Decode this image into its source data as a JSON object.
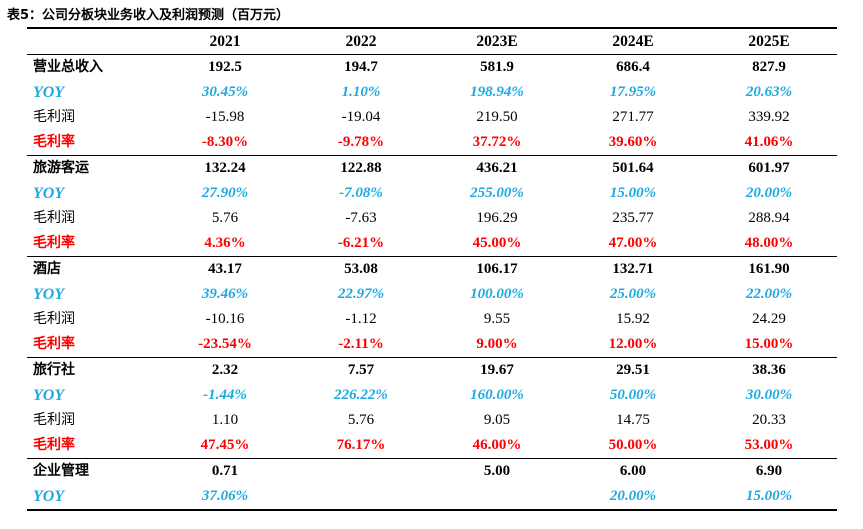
{
  "title": "表5：公司分板块业务收入及利润预测（百万元）",
  "columns": [
    "",
    "2021",
    "2022",
    "2023E",
    "2024E",
    "2025E"
  ],
  "sections": [
    {
      "rows": [
        {
          "type": "rev",
          "label": "营业总收入",
          "values": [
            "192.5",
            "194.7",
            "581.9",
            "686.4",
            "827.9"
          ]
        },
        {
          "type": "yoy",
          "label": "YOY",
          "values": [
            "30.45%",
            "1.10%",
            "198.94%",
            "17.95%",
            "20.63%"
          ]
        },
        {
          "type": "gp",
          "label": "毛利润",
          "values": [
            "-15.98",
            "-19.04",
            "219.50",
            "271.77",
            "339.92"
          ]
        },
        {
          "type": "gm",
          "label": "毛利率",
          "values": [
            "-8.30%",
            "-9.78%",
            "37.72%",
            "39.60%",
            "41.06%"
          ]
        }
      ]
    },
    {
      "rows": [
        {
          "type": "rev",
          "label": "旅游客运",
          "values": [
            "132.24",
            "122.88",
            "436.21",
            "501.64",
            "601.97"
          ]
        },
        {
          "type": "yoy",
          "label": "YOY",
          "values": [
            "27.90%",
            "-7.08%",
            "255.00%",
            "15.00%",
            "20.00%"
          ]
        },
        {
          "type": "gp",
          "label": "毛利润",
          "values": [
            "5.76",
            "-7.63",
            "196.29",
            "235.77",
            "288.94"
          ]
        },
        {
          "type": "gm",
          "label": "毛利率",
          "values": [
            "4.36%",
            "-6.21%",
            "45.00%",
            "47.00%",
            "48.00%"
          ]
        }
      ]
    },
    {
      "rows": [
        {
          "type": "rev",
          "label": "酒店",
          "values": [
            "43.17",
            "53.08",
            "106.17",
            "132.71",
            "161.90"
          ]
        },
        {
          "type": "yoy",
          "label": "YOY",
          "values": [
            "39.46%",
            "22.97%",
            "100.00%",
            "25.00%",
            "22.00%"
          ]
        },
        {
          "type": "gp",
          "label": "毛利润",
          "values": [
            "-10.16",
            "-1.12",
            "9.55",
            "15.92",
            "24.29"
          ]
        },
        {
          "type": "gm",
          "label": "毛利率",
          "values": [
            "-23.54%",
            "-2.11%",
            "9.00%",
            "12.00%",
            "15.00%"
          ]
        }
      ]
    },
    {
      "rows": [
        {
          "type": "rev",
          "label": "旅行社",
          "values": [
            "2.32",
            "7.57",
            "19.67",
            "29.51",
            "38.36"
          ]
        },
        {
          "type": "yoy",
          "label": "YOY",
          "values": [
            "-1.44%",
            "226.22%",
            "160.00%",
            "50.00%",
            "30.00%"
          ]
        },
        {
          "type": "gp",
          "label": "毛利润",
          "values": [
            "1.10",
            "5.76",
            "9.05",
            "14.75",
            "20.33"
          ]
        },
        {
          "type": "gm",
          "label": "毛利率",
          "values": [
            "47.45%",
            "76.17%",
            "46.00%",
            "50.00%",
            "53.00%"
          ]
        }
      ]
    },
    {
      "rows": [
        {
          "type": "rev",
          "label": "企业管理",
          "values": [
            "0.71",
            "",
            "5.00",
            "6.00",
            "6.90"
          ]
        },
        {
          "type": "yoy",
          "label": "YOY",
          "values": [
            "37.06%",
            "",
            "",
            "20.00%",
            "15.00%"
          ]
        }
      ]
    }
  ]
}
